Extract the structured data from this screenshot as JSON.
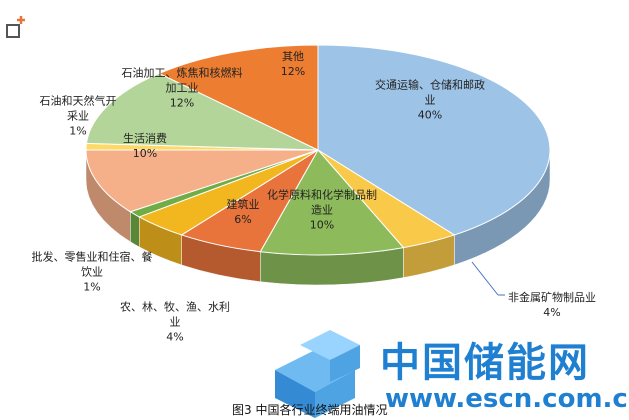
{
  "chart_data": {
    "type": "pie3d",
    "categories": [
      "交通运输、仓储和邮政业",
      "非金属矿物制品业",
      "化学原料和化学制品制造业",
      "建筑业",
      "农、林、牧、渔、水利业",
      "批发、零售业和住宿、餐饮业",
      "生活消费",
      "石油和天然气开采业",
      "石油加工、炼焦和核燃料加工业",
      "其他"
    ],
    "values": [
      40,
      4,
      10,
      6,
      4,
      1,
      10,
      1,
      12,
      12
    ],
    "value_labels": [
      "40%",
      "4%",
      "10%",
      "6%",
      "4%",
      "1%",
      "10%",
      "1%",
      "12%",
      "12%"
    ],
    "colors": [
      "#9dc3e6",
      "#f9c94a",
      "#8dbb5b",
      "#e8743b",
      "#f2b71f",
      "#70ad47",
      "#f5b08a",
      "#ffd966",
      "#b4d59a",
      "#ed7d31"
    ],
    "caption": "图3 中国各行业终端用油情况"
  },
  "watermark": {
    "logo": "中国储能网",
    "url": "www.escn.com.cn"
  }
}
